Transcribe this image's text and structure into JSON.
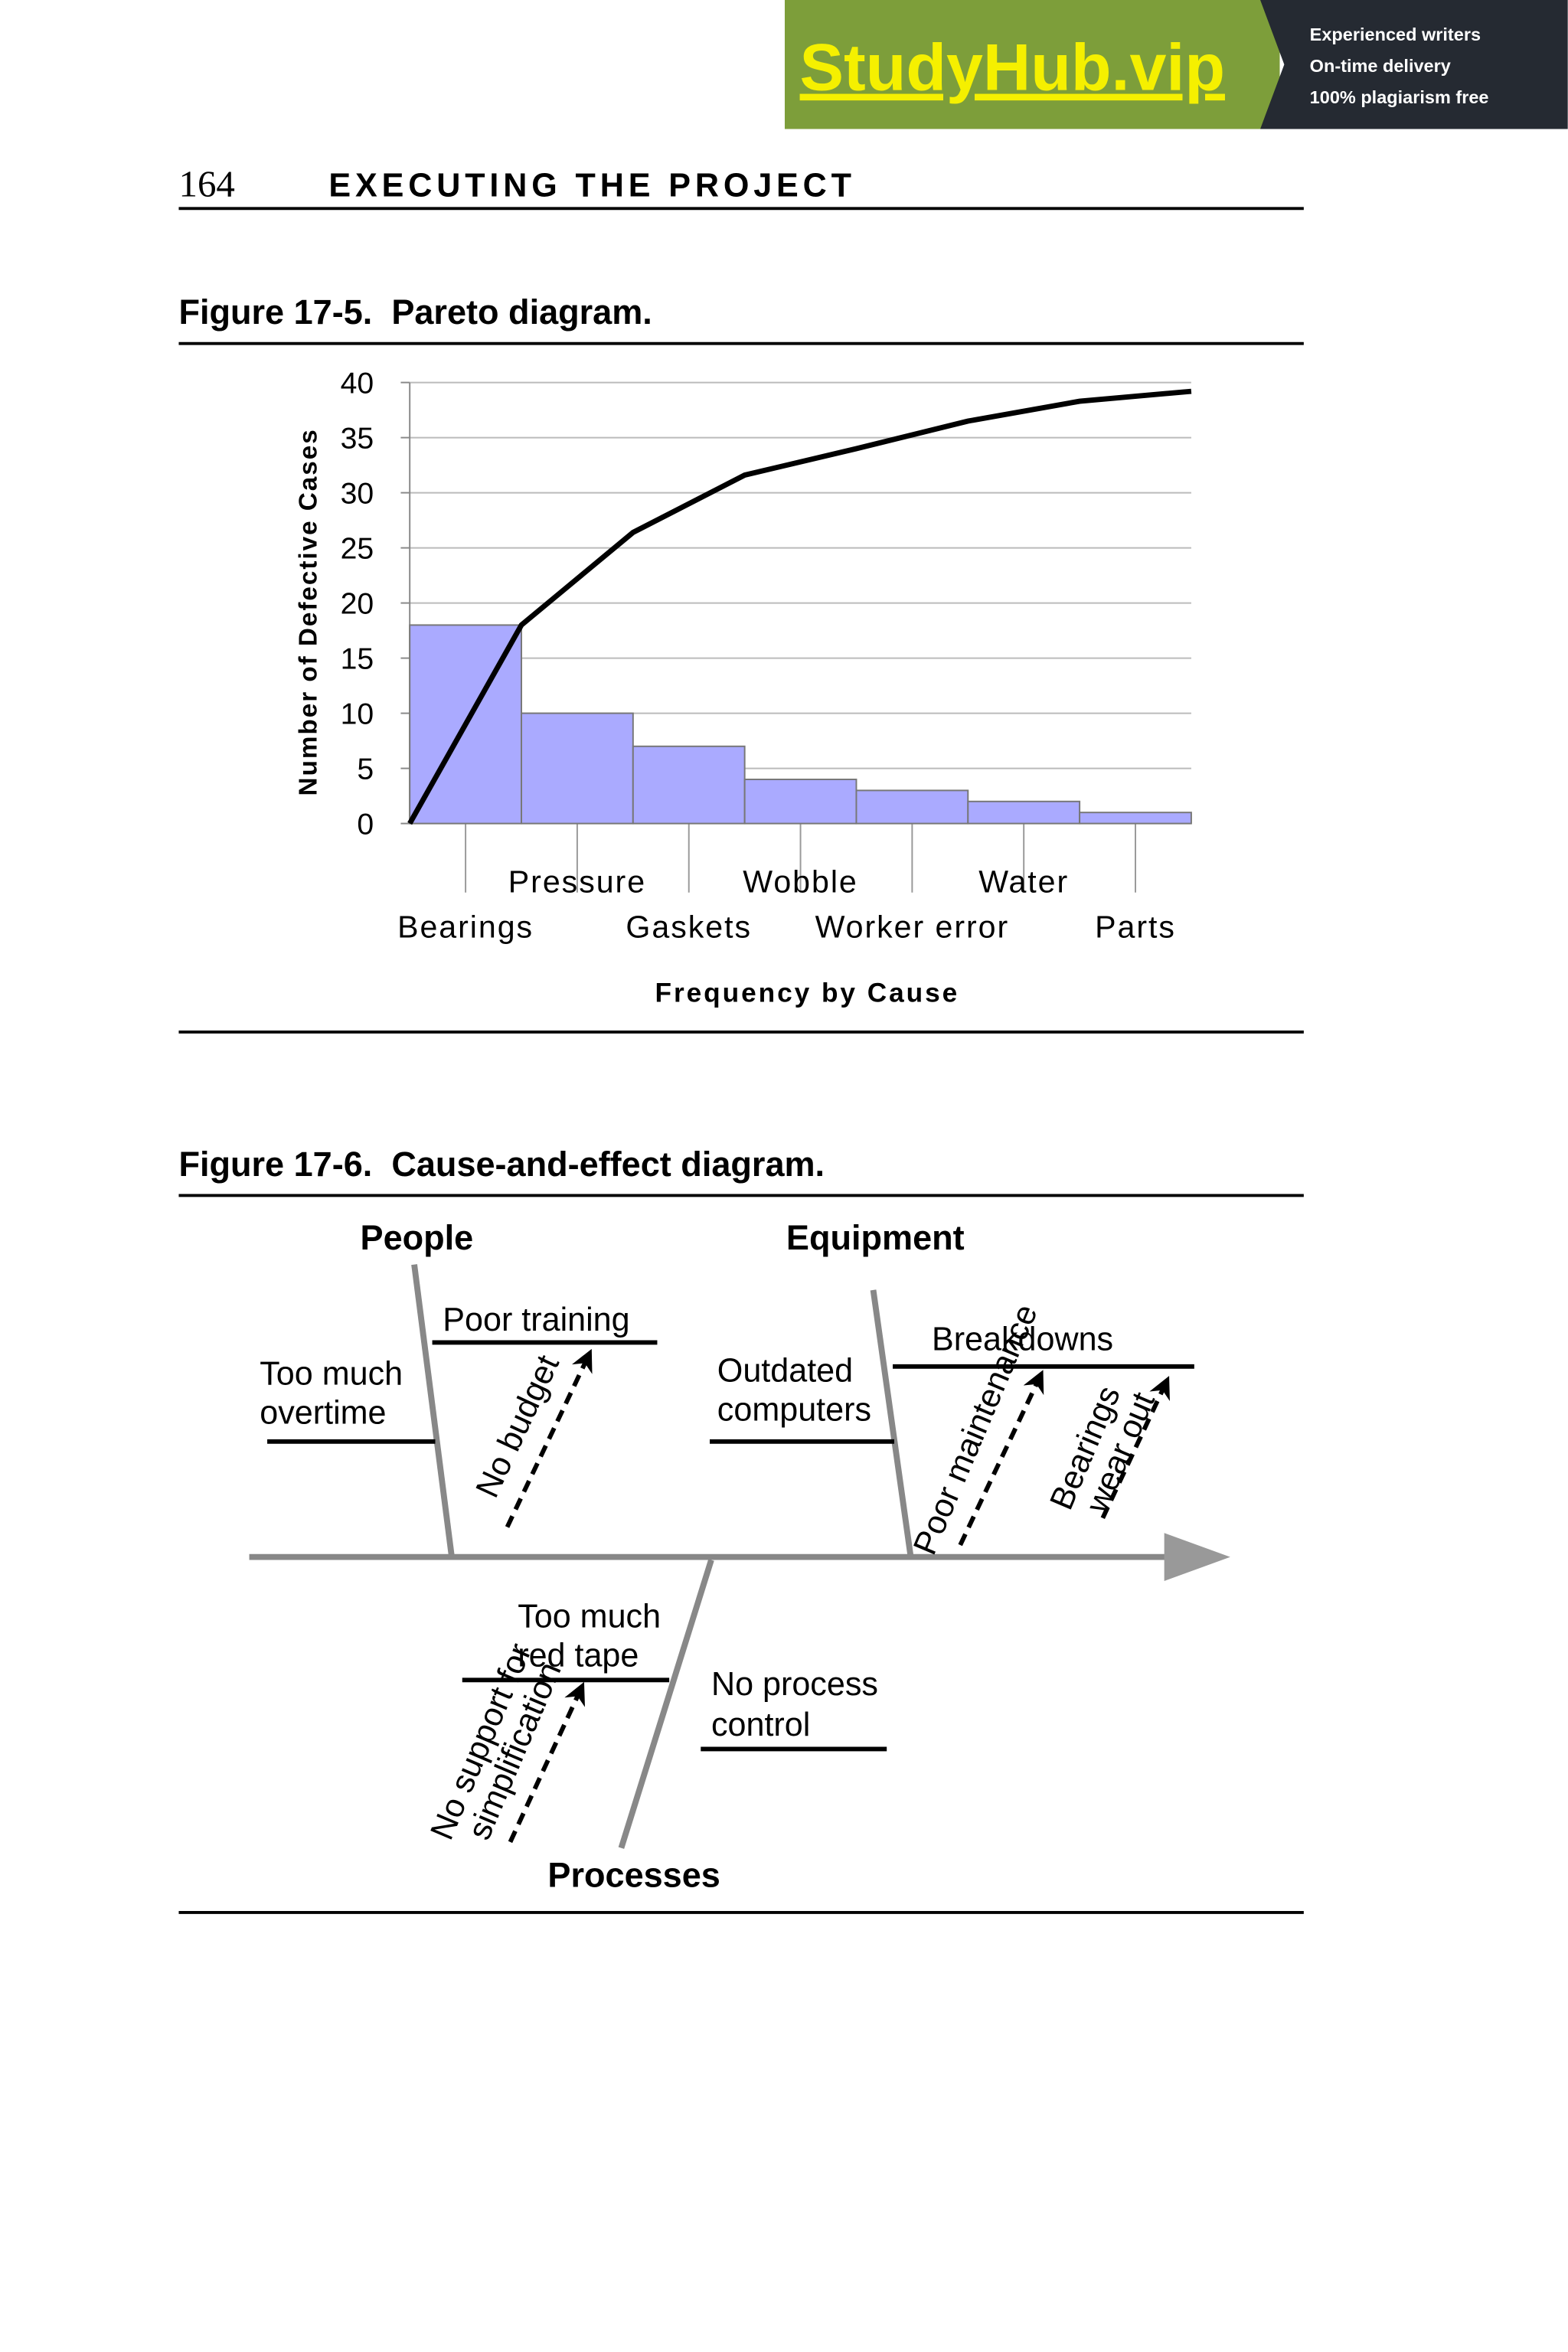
{
  "banner": {
    "brand": "StudyHub.vip",
    "features": [
      "Experienced writers",
      "On-time delivery",
      "100% plagiarism free"
    ]
  },
  "header": {
    "page_number": "164",
    "title": "EXECUTING THE PROJECT"
  },
  "figure_1": {
    "caption": "Figure 17-5.  Pareto diagram."
  },
  "chart_data": {
    "type": "bar",
    "x_label": "Frequency by Cause",
    "y_label": "Number of Defective Cases",
    "categories": [
      "Bearings",
      "Pressure",
      "Gaskets",
      "Wobble",
      "Worker error",
      "Water",
      "Parts"
    ],
    "values": [
      18,
      10,
      7,
      4,
      3,
      2,
      1
    ],
    "color": "#aaaaff",
    "line": {
      "color": "#000000",
      "values": [
        18,
        26.4,
        31.6,
        34,
        36.5,
        38.3,
        39.2
      ]
    },
    "ylim": [
      0,
      40
    ],
    "yticks": [
      0,
      5,
      10,
      15,
      20,
      25,
      30,
      35,
      40
    ],
    "grid": true
  },
  "figure_2": {
    "caption": "Figure 17-6.  Cause-and-effect diagram.",
    "categories": [
      "People",
      "Equipment",
      "Processes"
    ],
    "causes": {
      "overtime": [
        "Too much",
        "overtime"
      ],
      "training": "Poor training",
      "budget": "No budget",
      "computers": [
        "Outdated",
        "computers"
      ],
      "breakdowns": "Breakdowns",
      "maintenance": "Poor maintenance",
      "bearings": [
        "Bearings",
        "wear out"
      ],
      "red_tape": [
        "Too much",
        "red tape"
      ],
      "simplification": [
        "No support for",
        "simplification"
      ],
      "process_control": [
        "No process",
        "control"
      ]
    }
  }
}
